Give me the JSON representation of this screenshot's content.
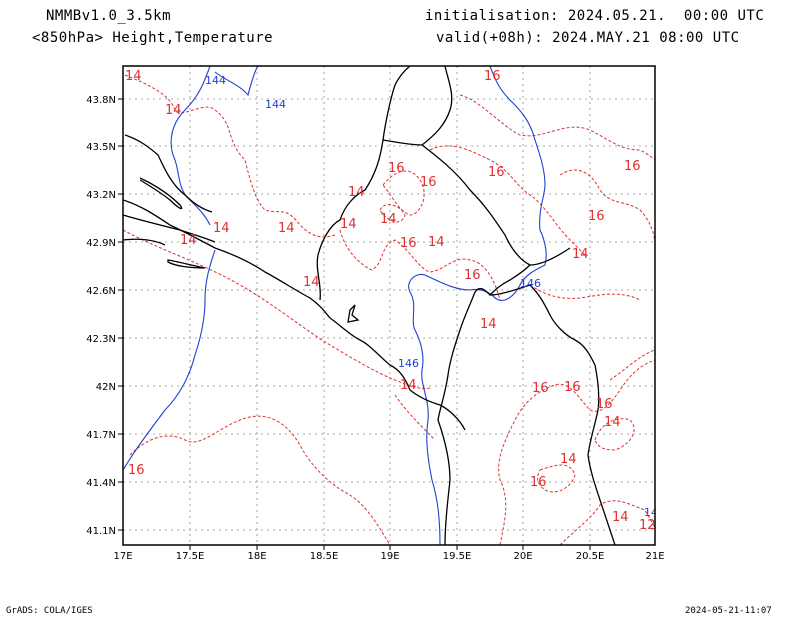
{
  "header": {
    "model": "NMMBv1.0_3.5km",
    "fields": "<850hPa> Height,Temperature",
    "init": "initialisation: 2024.05.21.  00:00 UTC",
    "valid": "valid(+08h): 2024.MAY.21 08:00 UTC"
  },
  "footer": {
    "credit": "GrADS: COLA/IGES",
    "timestamp": "2024-05-21-11:07"
  },
  "axes": {
    "x_ticks": [
      "17E",
      "17.5E",
      "18E",
      "18.5E",
      "19E",
      "19.5E",
      "20E",
      "20.5E",
      "21E"
    ],
    "y_ticks": [
      "43.8N",
      "43.5N",
      "43.2N",
      "42.9N",
      "42.6N",
      "42.3N",
      "42N",
      "41.7N",
      "41.4N",
      "41.1N"
    ]
  },
  "colors": {
    "temperature": "#e03030",
    "height": "#2040d0",
    "coast": "#000000",
    "grid": "#888888"
  },
  "temperature_labels": [
    "14",
    "14",
    "16",
    "14",
    "14",
    "14",
    "14",
    "16",
    "16",
    "14",
    "14",
    "16",
    "14",
    "16",
    "16",
    "14",
    "14",
    "16",
    "16",
    "16",
    "16",
    "14",
    "14",
    "16",
    "16",
    "14",
    "16",
    "14",
    "14",
    "12"
  ],
  "height_labels": [
    "144",
    "144",
    "146",
    "146",
    "14"
  ]
}
